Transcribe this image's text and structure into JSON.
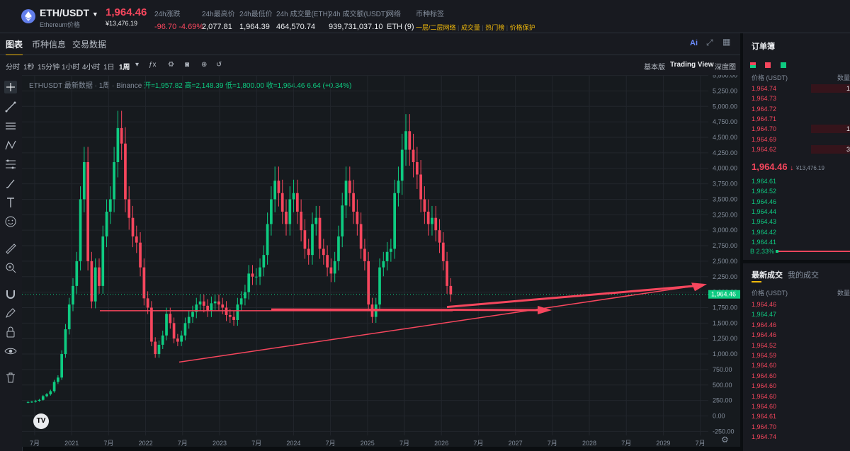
{
  "header": {
    "pair": "ETH/USDT",
    "coin_name": "Ethereum价格",
    "price": "1,964.46",
    "price_cny": "¥13,476.19",
    "stats": [
      {
        "label": "24h涨跌",
        "value": "-96.70 -4.69%",
        "tone": "down"
      },
      {
        "label": "24h最高价",
        "value": "2,077.81",
        "tone": "normal"
      },
      {
        "label": "24h最低价",
        "value": "1,964.39",
        "tone": "normal"
      },
      {
        "label": "24h 成交量(ETH)",
        "value": "464,570.74",
        "tone": "normal"
      },
      {
        "label": "24h 成交额(USDT)",
        "value": "939,731,037.10",
        "tone": "normal"
      },
      {
        "label": "网络",
        "value": "ETH (9)",
        "tone": "normal"
      }
    ],
    "tags_label": "币种标签",
    "tags": [
      "一层/二层网络",
      "成交量",
      "热门榜",
      "价格保护"
    ]
  },
  "tabs": [
    "图表",
    "币种信息",
    "交易数据"
  ],
  "toolbar": {
    "intervals": [
      "分时",
      "1秒",
      "15分钟",
      "1小时",
      "4小时",
      "1日",
      "1周"
    ],
    "views": [
      "基本版",
      "Trading View",
      "深度图"
    ],
    "ai_label": "Ai"
  },
  "legend": {
    "symbol": "ETHUSDT 最新数据 · 1周 · Binance",
    "open": "开=1,957.82",
    "high": "高=2,148.39",
    "low": "低=1,800.00",
    "close": "收=1,964.46",
    "change": "6.64 (+0.34%)"
  },
  "chart_data": {
    "type": "candlestick",
    "yticks": [
      "5,500.00",
      "5,250.00",
      "5,000.00",
      "4,750.00",
      "4,500.00",
      "4,250.00",
      "4,000.00",
      "3,750.00",
      "3,500.00",
      "3,250.00",
      "3,000.00",
      "2,750.00",
      "2,500.00",
      "2,250.00",
      "2,000.00",
      "1,750.00",
      "1,500.00",
      "1,250.00",
      "1,000.00",
      "750.00",
      "500.00",
      "250.00",
      "0.00",
      "-250.00"
    ],
    "yrange": [
      -250,
      5500
    ],
    "xticks": [
      "7月",
      "2021",
      "7月",
      "2022",
      "7月",
      "2023",
      "7月",
      "2024",
      "7月",
      "2025",
      "7月",
      "2026",
      "7月",
      "2027",
      "7月",
      "2028",
      "7月",
      "2029",
      "7月"
    ],
    "last_price": "1,964.46",
    "approx_weekly_close": [
      225,
      230,
      245,
      260,
      320,
      350,
      400,
      550,
      620,
      1000,
      1400,
      1800,
      2100,
      2500,
      3500,
      4100,
      2500,
      1850,
      2400,
      2100,
      2900,
      3300,
      3500,
      4100,
      4650,
      4400,
      3500,
      3200,
      2900,
      2800,
      2400,
      1900,
      1750,
      1200,
      1000,
      1150,
      1300,
      1650,
      1500,
      1250,
      1200,
      1300,
      1500,
      1600,
      1680,
      1800,
      1850,
      1780,
      1700,
      1820,
      1850,
      1800,
      1750,
      1630,
      1600,
      1550,
      1800,
      1900,
      2000,
      2300,
      2250,
      2250,
      2400,
      2600,
      3100,
      3500,
      3800,
      3600,
      3300,
      3100,
      3500,
      3600,
      3300,
      3000,
      2700,
      2600,
      3100,
      3200,
      2700,
      2600,
      2400,
      2300,
      2500,
      2900,
      3400,
      3800,
      3600,
      3300,
      3100,
      2700,
      2500,
      1800,
      1600,
      1800,
      2400,
      2500,
      2650,
      2700,
      3600,
      3800,
      4300,
      4600,
      4300,
      4100,
      3900,
      3500,
      3300,
      3100,
      3200,
      3000,
      2800,
      2500,
      2100,
      1964
    ],
    "trendlines": [
      "horizontal support ~1,700",
      "rising support from ~900",
      "arrow to ~1,964"
    ]
  },
  "orderbook": {
    "title": "订单簿",
    "col_price": "价格 (USDT)",
    "col_qty": "数量",
    "asks": [
      "1,964.74",
      "1,964.73",
      "1,964.72",
      "1,964.71",
      "1,964.70",
      "1,964.69",
      "1,964.62"
    ],
    "ask_qty": [
      "1",
      "",
      "",
      "",
      "1",
      "",
      "3"
    ],
    "mid_price": "1,964.46",
    "mid_arrow": "↓",
    "mid_cny": "¥13,476.19",
    "bids": [
      "1,964.61",
      "1,964.52",
      "1,964.46",
      "1,964.44",
      "1,964.43",
      "1,964.42",
      "1,964.41"
    ],
    "ratio": "B 2.33%"
  },
  "trades": {
    "tabs": [
      "最新成交",
      "我的成交"
    ],
    "col_price": "价格 (USDT)",
    "col_qty": "数量",
    "prices": [
      {
        "p": "1,964.46",
        "t": "down"
      },
      {
        "p": "1,964.47",
        "t": "up"
      },
      {
        "p": "1,964.46",
        "t": "down"
      },
      {
        "p": "1,964.46",
        "t": "down"
      },
      {
        "p": "1,964.52",
        "t": "down"
      },
      {
        "p": "1,964.59",
        "t": "down"
      },
      {
        "p": "1,964.60",
        "t": "down"
      },
      {
        "p": "1,964.60",
        "t": "down"
      },
      {
        "p": "1,964.60",
        "t": "down"
      },
      {
        "p": "1,964.60",
        "t": "down"
      },
      {
        "p": "1,964.60",
        "t": "down"
      },
      {
        "p": "1,964.61",
        "t": "down"
      },
      {
        "p": "1,964.70",
        "t": "down"
      },
      {
        "p": "1,964.74",
        "t": "down"
      }
    ]
  }
}
